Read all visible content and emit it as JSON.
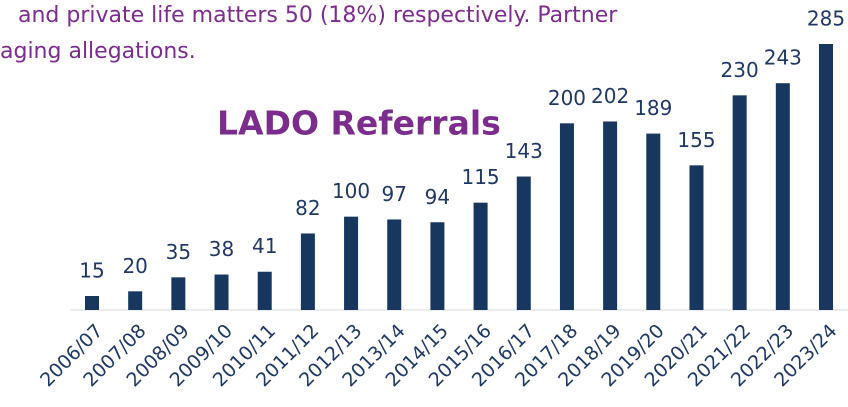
{
  "chart_data": {
    "type": "bar",
    "title": "LADO Referrals",
    "annotations": [
      "and private life matters 50 (18%) respectively. Partner",
      "aging allegations."
    ],
    "categories": [
      "2006/07",
      "2007/08",
      "2008/09",
      "2009/10",
      "2010/11",
      "2011/12",
      "2012/13",
      "2013/14",
      "2014/15",
      "2015/16",
      "2016/17",
      "2017/18",
      "2018/19",
      "2019/20",
      "2020/21",
      "2021/22",
      "2022/23",
      "2023/24"
    ],
    "values": [
      15,
      20,
      35,
      38,
      41,
      82,
      100,
      97,
      94,
      115,
      143,
      200,
      202,
      189,
      155,
      230,
      243,
      285
    ],
    "color": "#17375e",
    "ylim": [
      0,
      300
    ]
  }
}
